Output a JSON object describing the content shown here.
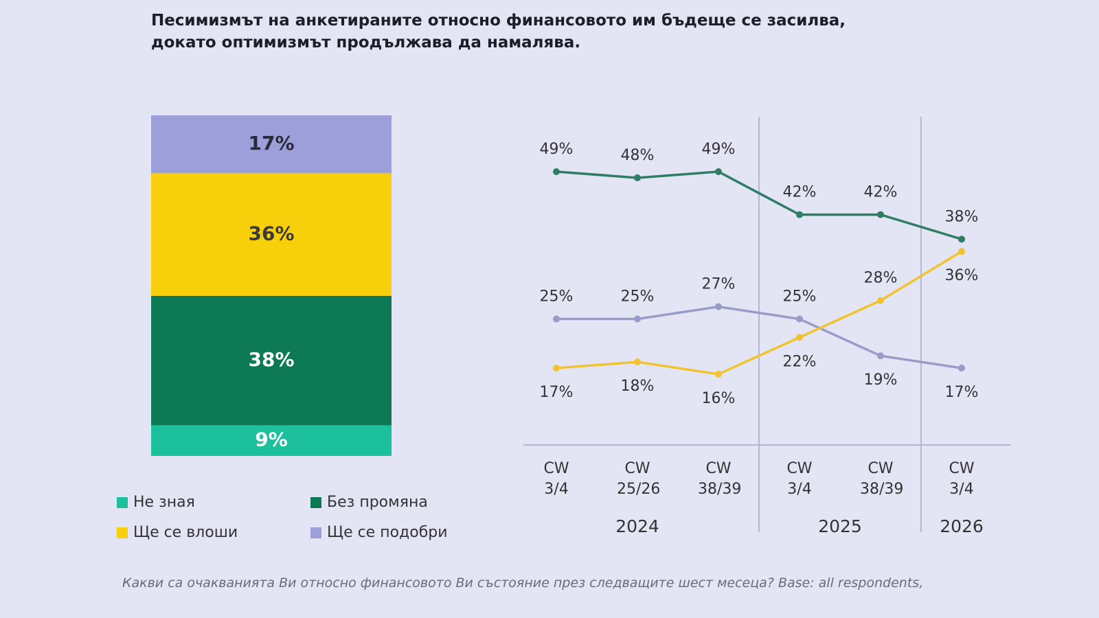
{
  "title": "Песимизмът на анкетираните относно финансовото им бъдеще се засилва, докато оптимизмът продължава да намалява.",
  "footnote": "Какви са очакванията Ви относно финансовото Ви състояние през следващите шест месеца? Base: all respondents,",
  "chart_data": [
    {
      "type": "stacked-bar",
      "categories": [
        null
      ],
      "series": [
        {
          "name": "Не зная",
          "color": "#1cc09c",
          "label_color": "#ffffff",
          "values": [
            9
          ],
          "value_labels": [
            "9%"
          ]
        },
        {
          "name": "Без промяна",
          "color": "#0e7a55",
          "label_color": "#ffffff",
          "values": [
            38
          ],
          "value_labels": [
            "38%"
          ]
        },
        {
          "name": "Ще се влоши",
          "color": "#f7cf0a",
          "label_color": "#3a3a3a",
          "values": [
            36
          ],
          "value_labels": [
            "36%"
          ]
        },
        {
          "name": "Ще се подобри",
          "color": "#9c9fd9",
          "label_color": "#2a2a3a",
          "values": [
            17
          ],
          "value_labels": [
            "17%"
          ]
        }
      ]
    },
    {
      "type": "line",
      "categories": [
        "CW 3/4",
        "CW 25/26",
        "CW 38/39",
        "CW 3/4",
        "CW 38/39",
        "CW 3/4"
      ],
      "years": [
        "2024",
        null,
        null,
        "2025",
        null,
        "2026"
      ],
      "series": [
        {
          "color": "#2e7d64",
          "values": [
            49,
            48,
            49,
            42,
            42,
            38
          ],
          "value_labels": [
            "49%",
            "48%",
            "49%",
            "42%",
            "42%",
            "38%"
          ]
        },
        {
          "color": "#9a9cc8",
          "values": [
            25,
            25,
            27,
            25,
            19,
            17
          ],
          "value_labels": [
            "25%",
            "25%",
            "27%",
            "25%",
            "19%",
            "17%"
          ]
        },
        {
          "color": "#f2c330",
          "values": [
            17,
            18,
            16,
            22,
            28,
            36
          ],
          "value_labels": [
            "17%",
            "18%",
            "16%",
            "22%",
            "28%",
            "36%"
          ]
        }
      ]
    }
  ]
}
